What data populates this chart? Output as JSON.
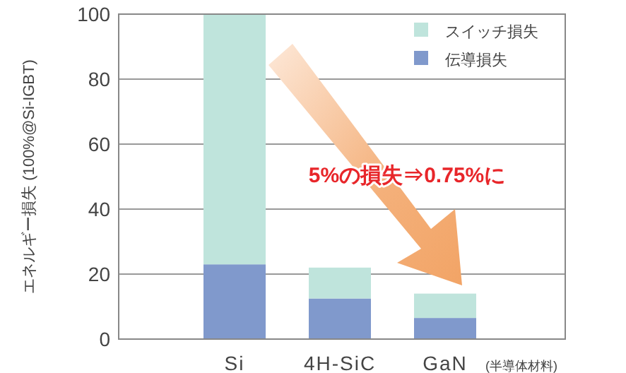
{
  "chart_data": {
    "type": "bar",
    "stacked": true,
    "ylabel": "エネルギー損失 (100%@Si-IGBT)",
    "categories": [
      "Si",
      "4H-SiC",
      "GaN"
    ],
    "series": [
      {
        "name": "伝導損失",
        "color": "#8099cc",
        "values": [
          23,
          12.5,
          6.5
        ]
      },
      {
        "name": "スイッチ損失",
        "color": "#bfe4dc",
        "values": [
          77,
          9.5,
          7.5
        ]
      }
    ],
    "ylim": [
      0,
      100
    ],
    "yticks": [
      0,
      20,
      40,
      60,
      80,
      100
    ],
    "grid": "y",
    "legend": "top right",
    "annotations": [
      "5%の損失⇒0.75%に",
      "(半導体材料)"
    ]
  }
}
